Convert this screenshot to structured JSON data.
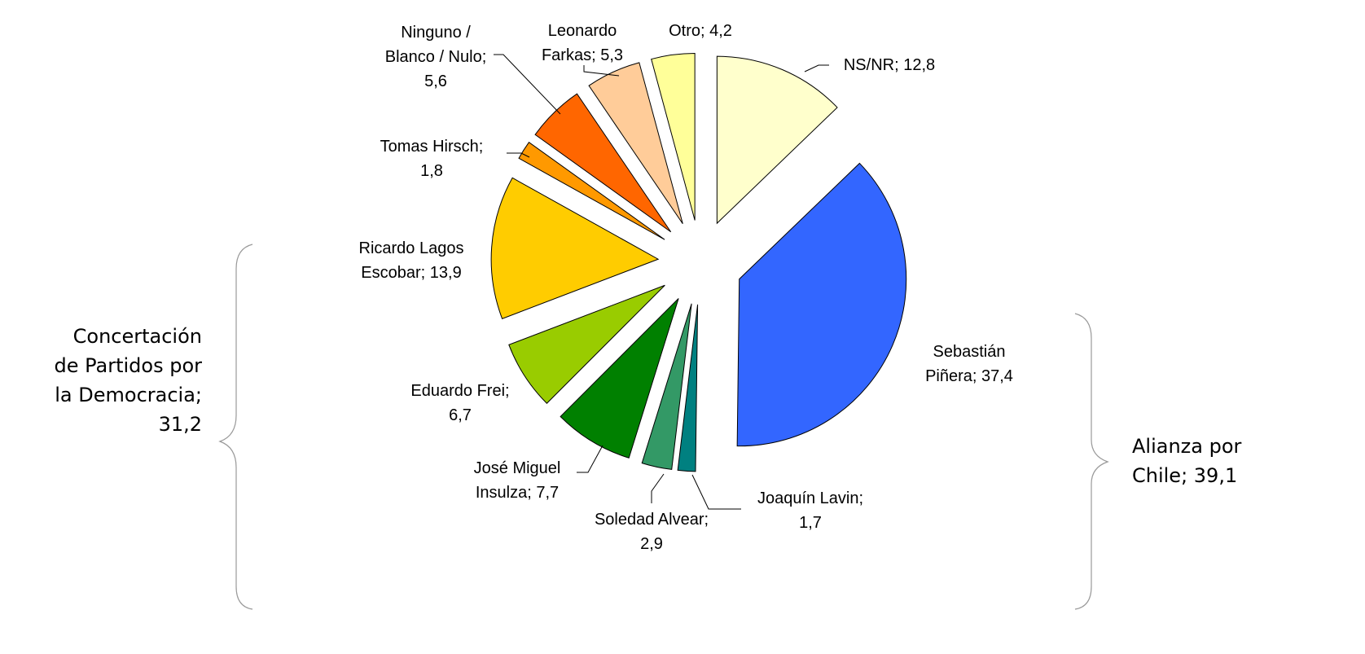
{
  "chart_data": {
    "type": "pie",
    "categories": [
      "NS/NR;",
      "Sebastián Piñera;",
      "Joaquín Lavin;",
      "Soledad Alvear;",
      "José Miguel Insulza;",
      "Eduardo Frei;",
      "Ricardo Lagos Escobar;",
      "Tomas Hirsch;",
      "Ninguno / Blanco / Nulo;",
      "Leonardo Farkas;",
      "Otro;"
    ],
    "values": [
      12.8,
      37.4,
      1.7,
      2.9,
      7.7,
      6.7,
      13.9,
      1.8,
      5.6,
      5.3,
      4.2
    ],
    "value_labels": [
      "12,8",
      "37,4",
      "1,7",
      "2,9",
      "7,7",
      "6,7",
      "13,9",
      "1,8",
      "5,6",
      "5,3",
      "4,2"
    ],
    "colors": [
      "#FFFFCC",
      "#3366FF",
      "#008080",
      "#339966",
      "#008000",
      "#99CC00",
      "#FFCC00",
      "#FF9900",
      "#FF6600",
      "#FFCC99",
      "#FFFF99"
    ],
    "annotations": [
      {
        "lines": [
          "Concertación",
          "de Partidos por",
          "la Democracia;",
          "31,2"
        ]
      },
      {
        "lines": [
          "Alianza por",
          "Chile; 39,1"
        ]
      }
    ]
  }
}
